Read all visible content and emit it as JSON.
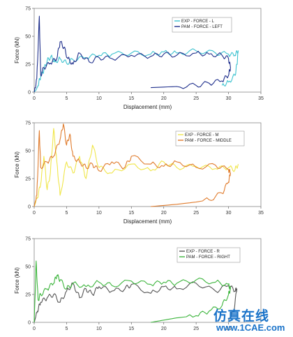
{
  "chart_data": [
    {
      "type": "line",
      "xlabel": "Displacement (mm)",
      "ylabel": "Force (kN)",
      "xlim": [
        0,
        35
      ],
      "ylim": [
        0,
        75
      ],
      "xticks": [
        "0",
        "5",
        "10",
        "15",
        "20",
        "25",
        "30",
        "35"
      ],
      "yticks": [
        "0",
        "25",
        "50",
        "75"
      ],
      "legend_position": "top-right",
      "series": [
        {
          "name": "EXP - FORCE - L",
          "color": "#3cc2cf",
          "x": [
            0,
            0.3,
            0.6,
            1.0,
            1.5,
            2.0,
            2.6,
            3.2,
            4.0,
            5.0,
            6.0,
            8.0,
            10.0,
            12.0,
            15.0,
            18.0,
            20.0,
            22.0,
            25.0,
            28.0,
            30.0,
            31.0,
            31.5,
            31.3,
            31.0,
            30.0,
            29.0
          ],
          "y": [
            0,
            2,
            6,
            14,
            20,
            28,
            32,
            27,
            30,
            26,
            29,
            31,
            33,
            34,
            35,
            34,
            36,
            35,
            37,
            35,
            34,
            33,
            37,
            25,
            15,
            9,
            6
          ]
        },
        {
          "name": "PAM - FORCE - LEFT",
          "color": "#1f2f8c",
          "x": [
            0,
            0.4,
            0.8,
            1.0,
            1.5,
            2.5,
            3.5,
            4.0,
            4.6,
            5.2,
            6.0,
            7.0,
            8.5,
            10.0,
            12.0,
            15.0,
            18.0,
            20.0,
            22.0,
            25.0,
            27.0,
            29.0,
            30.0,
            30.3,
            30.0,
            29.0,
            27.0,
            25.0,
            22.0,
            18.0
          ],
          "y": [
            0,
            12,
            68,
            15,
            22,
            26,
            30,
            45,
            40,
            30,
            25,
            35,
            27,
            31,
            30,
            33,
            32,
            34,
            33,
            35,
            34,
            33,
            30,
            22,
            15,
            10,
            8,
            6,
            5,
            4
          ]
        }
      ]
    },
    {
      "type": "line",
      "xlabel": "Displacement (mm)",
      "ylabel": "Force (kN)",
      "xlim": [
        0,
        35
      ],
      "ylim": [
        0,
        75
      ],
      "xticks": [
        "0",
        "5",
        "10",
        "15",
        "20",
        "25",
        "30",
        "35"
      ],
      "yticks": [
        "0",
        "25",
        "50",
        "75"
      ],
      "legend_position": "top-right",
      "series": [
        {
          "name": "EXP - FORCE - M",
          "color": "#f0e64a",
          "x": [
            0,
            0.5,
            1.0,
            1.5,
            2.0,
            2.5,
            3.0,
            3.5,
            4.0,
            5.0,
            6.0,
            7.0,
            8.0,
            9.0,
            10.0,
            12.0,
            15.0,
            18.0,
            20.0,
            22.0,
            25.0,
            28.0,
            30.0,
            31.0,
            31.5
          ],
          "y": [
            0,
            8,
            20,
            45,
            15,
            30,
            70,
            40,
            10,
            40,
            30,
            45,
            25,
            55,
            35,
            30,
            38,
            32,
            40,
            35,
            36,
            34,
            35,
            33,
            38
          ]
        },
        {
          "name": "PAM - FORCE - MIDDLE",
          "color": "#e07b2c",
          "x": [
            0,
            0.4,
            0.8,
            1.0,
            2.0,
            3.0,
            4.0,
            4.5,
            5.0,
            5.5,
            6.0,
            7.0,
            8.0,
            9.0,
            10.0,
            12.0,
            14.0,
            15.0,
            18.0,
            20.0,
            22.0,
            25.0,
            28.0,
            30.0,
            30.3,
            30.0,
            29.0,
            27.0,
            25.0,
            22.0,
            18.0
          ],
          "y": [
            0,
            10,
            68,
            35,
            40,
            45,
            60,
            74,
            55,
            65,
            45,
            40,
            35,
            38,
            32,
            40,
            35,
            45,
            38,
            36,
            40,
            35,
            37,
            33,
            30,
            22,
            12,
            6,
            4,
            2,
            0
          ]
        }
      ]
    },
    {
      "type": "line",
      "xlabel": "",
      "ylabel": "Force (kN)",
      "xlim": [
        0,
        35
      ],
      "ylim": [
        0,
        75
      ],
      "xticks": [
        "0",
        "5",
        "10",
        "15",
        "20",
        "25",
        "30"
      ],
      "yticks": [
        "0",
        "25",
        "50",
        "75"
      ],
      "legend_position": "top-right",
      "series": [
        {
          "name": "EXP - FORCE - R",
          "color": "#555555",
          "x": [
            0,
            0.5,
            1.0,
            2.0,
            3.0,
            4.0,
            5.0,
            6.0,
            7.0,
            8.0,
            9.0,
            10.0,
            12.0,
            14.0,
            15.0,
            18.0,
            20.0,
            22.0,
            25.0,
            28.0,
            30.0,
            31.0,
            31.3,
            30.8,
            30.0
          ],
          "y": [
            0,
            10,
            18,
            22,
            25,
            18,
            28,
            35,
            22,
            30,
            25,
            32,
            28,
            30,
            34,
            26,
            32,
            30,
            35,
            28,
            33,
            28,
            30,
            10,
            2
          ]
        },
        {
          "name": "PAM - FORCE - RIGHT",
          "color": "#3db53d",
          "x": [
            0,
            0.3,
            0.6,
            1.0,
            2.0,
            3.0,
            3.5,
            4.0,
            5.0,
            6.0,
            8.0,
            10.0,
            12.0,
            15.0,
            18.0,
            20.0,
            22.0,
            25.0,
            28.0,
            30.0,
            30.3,
            30.0,
            29.0,
            27.0,
            25.0,
            22.0,
            20.0,
            18.0
          ],
          "y": [
            0,
            55,
            20,
            25,
            30,
            35,
            42,
            38,
            30,
            35,
            32,
            36,
            33,
            37,
            34,
            36,
            35,
            38,
            36,
            34,
            30,
            25,
            15,
            10,
            6,
            4,
            2,
            0
          ]
        }
      ]
    }
  ],
  "watermark": {
    "cn": "仿真在线",
    "url": "www.1CAE.com"
  }
}
